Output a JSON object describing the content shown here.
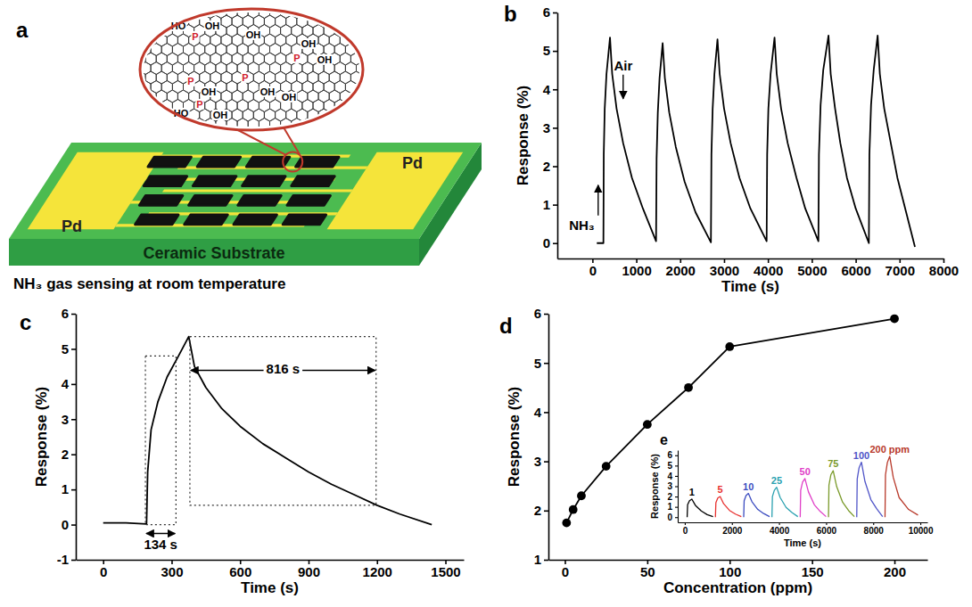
{
  "diagram": {
    "letter": "a",
    "electrode_labels": [
      "Pd",
      "Pd"
    ],
    "substrate_label": "Ceramic Substrate",
    "caption": "NH₃ gas sensing at room temperature",
    "structure_labels": [
      "HO",
      "P",
      "OH",
      "OH",
      "OH",
      "P",
      "OH",
      "P",
      "P",
      "OH",
      "OH",
      "HO",
      "P",
      "OH",
      "OH"
    ]
  },
  "chart_data": [
    {
      "letter": "b",
      "type": "line",
      "x_label": "Time (s)",
      "y_label": "Response (%)",
      "xlim": [
        -800,
        8000
      ],
      "xticks": [
        0,
        1000,
        2000,
        3000,
        4000,
        5000,
        6000,
        7000,
        8000
      ],
      "ylim": [
        -0.4,
        6
      ],
      "yticks": [
        0,
        1,
        2,
        3,
        4,
        5,
        6
      ],
      "series": [
        {
          "color": "#000000",
          "x": [
            100,
            250,
            258,
            280,
            320,
            400,
            450,
            550,
            700,
            900,
            1150,
            1450,
            1462,
            1490,
            1530,
            1600,
            1650,
            1750,
            1900,
            2100,
            2350,
            2700,
            2712,
            2740,
            2780,
            2850,
            2900,
            3000,
            3150,
            3350,
            3600,
            3970,
            3982,
            4010,
            4060,
            4150,
            4200,
            4300,
            4450,
            4650,
            4850,
            5150,
            5162,
            5200,
            5260,
            5380,
            5430,
            5530,
            5650,
            5800,
            6000,
            6300,
            6312,
            6350,
            6410,
            6500,
            6550,
            6650,
            6800,
            6950,
            7150,
            7350
          ],
          "values": [
            0,
            0,
            2.3,
            3.5,
            4.4,
            5.35,
            4.4,
            3.5,
            2.6,
            1.7,
            0.9,
            0.05,
            2.2,
            3.4,
            4.3,
            5.2,
            4.3,
            3.4,
            2.5,
            1.6,
            0.8,
            0.02,
            2.3,
            3.5,
            4.4,
            5.3,
            4.4,
            3.5,
            2.6,
            1.7,
            0.9,
            0.05,
            2.3,
            3.5,
            4.4,
            5.35,
            4.4,
            3.5,
            2.6,
            1.7,
            0.9,
            0.05,
            2.3,
            3.6,
            4.5,
            5.4,
            4.4,
            3.5,
            2.6,
            1.7,
            0.9,
            0.0,
            2.3,
            3.6,
            4.5,
            5.4,
            4.4,
            3.5,
            2.6,
            1.7,
            0.8,
            -0.1
          ]
        }
      ],
      "annotations": [
        {
          "text": "NH₃",
          "x": 90,
          "y": 0.35
        },
        {
          "text": "Air",
          "x": 700,
          "y": 4.5
        }
      ]
    },
    {
      "letter": "c",
      "type": "line",
      "x_label": "Time (s)",
      "y_label": "Response (%)",
      "xlim": [
        -120,
        1580
      ],
      "xticks": [
        0,
        300,
        600,
        900,
        1200,
        1500
      ],
      "ylim": [
        -1,
        6
      ],
      "yticks": [
        -1,
        0,
        1,
        2,
        3,
        4,
        5,
        6
      ],
      "series": [
        {
          "color": "#000000",
          "x": [
            0,
            100,
            190,
            195,
            210,
            240,
            280,
            330,
            375,
            400,
            450,
            520,
            600,
            700,
            800,
            900,
            1000,
            1100,
            1200,
            1300,
            1440
          ],
          "values": [
            0.05,
            0.05,
            0.02,
            1.5,
            2.7,
            3.5,
            4.2,
            4.8,
            5.35,
            4.5,
            3.9,
            3.3,
            2.8,
            2.3,
            1.9,
            1.5,
            1.15,
            0.85,
            0.55,
            0.3,
            0.0
          ]
        }
      ],
      "intervals": [
        {
          "label": "134 s",
          "x": [
            185,
            319
          ],
          "y": [
            0,
            4.8
          ]
        },
        {
          "label": "816 s",
          "x": [
            380,
            1196
          ],
          "y": [
            0.55,
            5.35
          ]
        }
      ]
    },
    {
      "letter": "d",
      "type": "line",
      "x_label": "Concentration (ppm)",
      "y_label": "Response (%)",
      "xlim": [
        -10,
        220
      ],
      "xticks": [
        0,
        50,
        100,
        150,
        200
      ],
      "ylim": [
        1,
        6
      ],
      "yticks": [
        1,
        2,
        3,
        4,
        5,
        6
      ],
      "series": [
        {
          "color": "#000000",
          "marker": "circle",
          "x": [
            1,
            5,
            10,
            25,
            50,
            75,
            100,
            200
          ],
          "values": [
            1.75,
            2.02,
            2.3,
            2.9,
            3.75,
            4.5,
            5.33,
            5.9
          ]
        }
      ]
    },
    {
      "letter": "e",
      "type": "line",
      "x_label": "Time (s)",
      "y_label": "Response (%)",
      "xlim": [
        -300,
        10300
      ],
      "xticks": [
        0,
        2000,
        4000,
        6000,
        8000,
        10000
      ],
      "ylim": [
        -0.5,
        6.5
      ],
      "yticks": [
        0,
        1,
        2,
        3,
        4,
        5,
        6
      ],
      "series": [
        {
          "name": "1",
          "color": "#000000",
          "x": [
            100,
            120,
            200,
            300,
            450,
            700,
            950,
            1200
          ],
          "values": [
            0,
            1.2,
            1.6,
            1.75,
            1.15,
            0.6,
            0.25,
            0.05
          ]
        },
        {
          "name": "5",
          "color": "#e8312f",
          "x": [
            1300,
            1320,
            1400,
            1500,
            1650,
            1900,
            2150,
            2400
          ],
          "values": [
            0,
            1.4,
            1.85,
            2.0,
            1.3,
            0.65,
            0.3,
            0.05
          ]
        },
        {
          "name": "10",
          "color": "#3b4cc0",
          "x": [
            2500,
            2520,
            2600,
            2700,
            2850,
            3100,
            3350,
            3600
          ],
          "values": [
            0,
            1.6,
            2.1,
            2.3,
            1.5,
            0.75,
            0.35,
            0.05
          ]
        },
        {
          "name": "25",
          "color": "#2aa1b0",
          "x": [
            3700,
            3720,
            3800,
            3900,
            4050,
            4300,
            4550,
            4800
          ],
          "values": [
            0,
            2.0,
            2.6,
            2.9,
            1.9,
            0.95,
            0.45,
            0.05
          ]
        },
        {
          "name": "50",
          "color": "#e040c8",
          "x": [
            4900,
            4920,
            5000,
            5100,
            5250,
            5500,
            5750,
            6000
          ],
          "values": [
            0,
            2.6,
            3.4,
            3.75,
            2.45,
            1.2,
            0.55,
            0.05
          ]
        },
        {
          "name": "75",
          "color": "#7a9a2a",
          "x": [
            6100,
            6120,
            6200,
            6300,
            6450,
            6700,
            6950,
            7200
          ],
          "values": [
            0,
            3.1,
            4.1,
            4.5,
            2.95,
            1.45,
            0.65,
            0.05
          ]
        },
        {
          "name": "100",
          "color": "#5055c8",
          "x": [
            7300,
            7320,
            7400,
            7500,
            7650,
            7900,
            8150,
            8400
          ],
          "values": [
            0,
            3.7,
            4.8,
            5.33,
            3.45,
            1.7,
            0.8,
            0.05
          ]
        },
        {
          "name": "200 ppm",
          "color": "#b8392a",
          "x": [
            8500,
            8520,
            8600,
            8700,
            8850,
            9100,
            9500,
            9900
          ],
          "values": [
            0,
            4.1,
            5.3,
            5.9,
            3.85,
            1.9,
            0.75,
            0.2
          ]
        }
      ]
    }
  ]
}
